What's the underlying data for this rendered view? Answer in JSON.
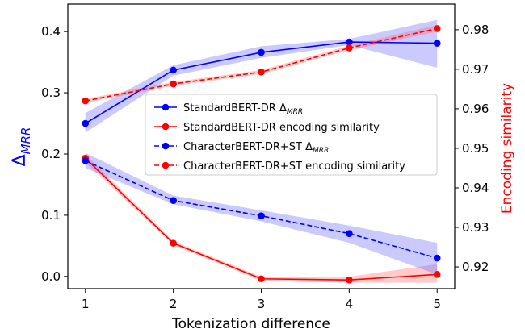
{
  "chart_data": {
    "type": "line",
    "xlabel": "Tokenization difference",
    "ylabel_left": "Δ",
    "ylabel_left_sub": "MRR",
    "ylabel_right": "Encoding similarity",
    "x_ticks": [
      "1",
      "2",
      "3",
      "4",
      "5"
    ],
    "y_left_ticks": [
      "0.0",
      "0.1",
      "0.2",
      "0.3",
      "0.4"
    ],
    "y_right_ticks": [
      "0.92",
      "0.93",
      "0.94",
      "0.95",
      "0.96",
      "0.97",
      "0.98"
    ],
    "xlim": [
      0.8,
      5.2
    ],
    "ylim_left": [
      -0.02,
      0.445
    ],
    "ylim_right": [
      0.9145,
      0.9865
    ],
    "x": [
      1,
      2,
      3,
      4,
      5
    ],
    "series": [
      {
        "name": "StandardBERT-DR ",
        "name_sub": "MRR",
        "name_prefix_symbol": "Δ",
        "axis": "left",
        "color": "#0000ff",
        "dash": "solid",
        "values": [
          0.25,
          0.337,
          0.366,
          0.383,
          0.381
        ],
        "band_low": [
          0.235,
          0.328,
          0.357,
          0.378,
          0.341
        ],
        "band_high": [
          0.267,
          0.345,
          0.376,
          0.388,
          0.419
        ]
      },
      {
        "name": "StandardBERT-DR encoding similarity",
        "axis": "right",
        "color": "#ff0000",
        "dash": "solid",
        "values": [
          0.9475,
          0.926,
          0.917,
          0.9167,
          0.9181
        ],
        "band_low": [
          0.9465,
          0.9255,
          0.9165,
          0.916,
          0.916
        ],
        "band_high": [
          0.9485,
          0.9265,
          0.9175,
          0.9175,
          0.9207
        ]
      },
      {
        "name": "CharacterBERT-DR+ST ",
        "name_sub": "MRR",
        "name_prefix_symbol": "Δ",
        "axis": "left",
        "color": "#0000ff",
        "dash": "dashed",
        "values": [
          0.189,
          0.124,
          0.099,
          0.07,
          0.03
        ],
        "band_low": [
          0.177,
          0.118,
          0.09,
          0.055,
          0.003
        ],
        "band_high": [
          0.202,
          0.132,
          0.108,
          0.083,
          0.055
        ]
      },
      {
        "name": "CharacterBERT-DR+ST encoding similarity",
        "axis": "right",
        "color": "#ff0000",
        "dash": "dashed",
        "values": [
          0.962,
          0.9663,
          0.9693,
          0.9754,
          0.9803
        ],
        "band_low": [
          0.9615,
          0.9658,
          0.9688,
          0.9748,
          0.9795
        ],
        "band_high": [
          0.9625,
          0.9668,
          0.9698,
          0.976,
          0.9812
        ]
      }
    ],
    "grid": false,
    "legend_position": "center-right"
  }
}
